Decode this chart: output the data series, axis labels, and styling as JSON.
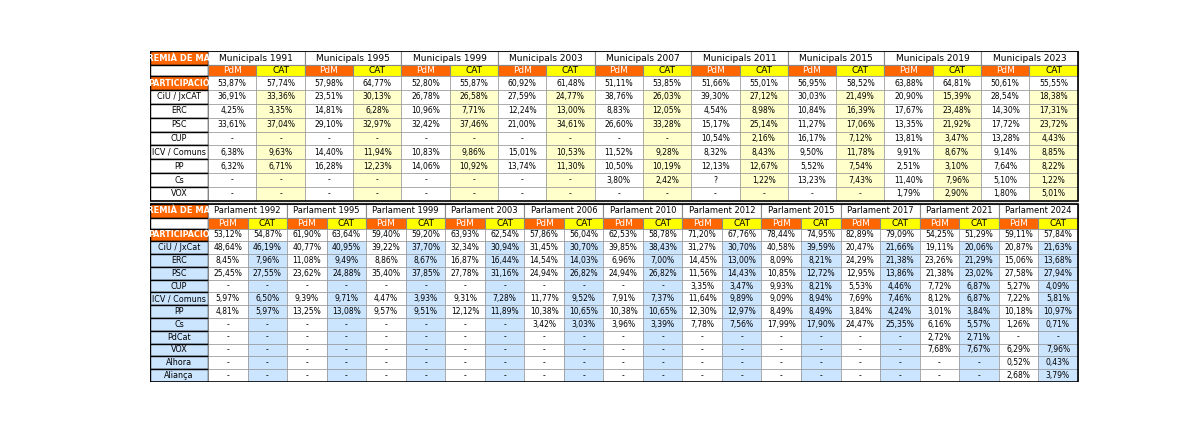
{
  "mun_headers": [
    "Municipals 1991",
    "Municipals 1995",
    "Municipals 1999",
    "Municipals 2003",
    "Municipals 2007",
    "Municipals 2011",
    "Municipals 2015",
    "Municipals 2019",
    "Municipals 2023"
  ],
  "parl_headers": [
    "Parlament 1992",
    "Parlament 1995",
    "Parlament 1999",
    "Parlament 2003",
    "Parlament 2006",
    "Parlament 2010",
    "Parlament 2012",
    "Parlament 2015",
    "Parlament 2017",
    "Parlament 2021",
    "Parlament 2024"
  ],
  "mun_parties": [
    "PARTICIPACIÓ",
    "CiU / JxCAT",
    "ERC",
    "PSC",
    "CUP",
    "ICV / Comuns",
    "PP",
    "Cs",
    "VOX"
  ],
  "parl_parties": [
    "PARTICIPACIÓ",
    "CiU / JxCat",
    "ERC",
    "PSC",
    "CUP",
    "ICV / Comuns",
    "PP",
    "Cs",
    "PdCat",
    "VOX",
    "Alhora",
    "Aliança"
  ],
  "mun_data": [
    [
      "53,87%",
      "57,74%",
      "57,98%",
      "64,77%",
      "52,80%",
      "55,87%",
      "60,92%",
      "61,48%",
      "51,11%",
      "53,85%",
      "51,66%",
      "55,01%",
      "56,95%",
      "58,52%",
      "63,88%",
      "64,81%",
      "50,61%",
      "55,55%"
    ],
    [
      "36,91%",
      "33,36%",
      "23,51%",
      "30,13%",
      "26,78%",
      "26,58%",
      "27,59%",
      "24,77%",
      "38,76%",
      "26,03%",
      "39,30%",
      "27,12%",
      "30,03%",
      "21,49%",
      "20,90%",
      "15,39%",
      "28,54%",
      "18,38%"
    ],
    [
      "4,25%",
      "3,35%",
      "14,81%",
      "6,28%",
      "10,96%",
      "7,71%",
      "12,24%",
      "13,00%",
      "8,83%",
      "12,05%",
      "4,54%",
      "8,98%",
      "10,84%",
      "16,39%",
      "17,67%",
      "23,48%",
      "14,30%",
      "17,31%"
    ],
    [
      "33,61%",
      "37,04%",
      "29,10%",
      "32,97%",
      "32,42%",
      "37,46%",
      "21,00%",
      "34,61%",
      "26,60%",
      "33,28%",
      "15,17%",
      "25,14%",
      "11,27%",
      "17,06%",
      "13,35%",
      "21,92%",
      "17,72%",
      "23,72%"
    ],
    [
      "-",
      "-",
      "-",
      "-",
      "-",
      "-",
      "-",
      "-",
      "-",
      "-",
      "10,54%",
      "2,16%",
      "16,17%",
      "7,12%",
      "13,81%",
      "3,47%",
      "13,28%",
      "4,43%"
    ],
    [
      "6,38%",
      "9,63%",
      "14,40%",
      "11,94%",
      "10,83%",
      "9,86%",
      "15,01%",
      "10,53%",
      "11,52%",
      "9,28%",
      "8,32%",
      "8,43%",
      "9,50%",
      "11,78%",
      "9,91%",
      "8,67%",
      "9,14%",
      "8,85%"
    ],
    [
      "6,32%",
      "6,71%",
      "16,28%",
      "12,23%",
      "14,06%",
      "10,92%",
      "13,74%",
      "11,30%",
      "10,50%",
      "10,19%",
      "12,13%",
      "12,67%",
      "5,52%",
      "7,54%",
      "2,51%",
      "3,10%",
      "7,64%",
      "8,22%"
    ],
    [
      "-",
      "-",
      "-",
      "-",
      "-",
      "-",
      "-",
      "-",
      "3,80%",
      "2,42%",
      "?",
      "1,22%",
      "13,23%",
      "7,43%",
      "11,40%",
      "7,96%",
      "5,10%",
      "1,22%"
    ],
    [
      "-",
      "-",
      "-",
      "-",
      "-",
      "-",
      "-",
      "-",
      "-",
      "-",
      "-",
      "-",
      "-",
      "-",
      "1,79%",
      "2,90%",
      "1,80%",
      "5,01%"
    ]
  ],
  "parl_data": [
    [
      "53,12%",
      "54,87%",
      "61,90%",
      "63,64%",
      "59,40%",
      "59,20%",
      "63,93%",
      "62,54%",
      "57,86%",
      "56,04%",
      "62,53%",
      "58,78%",
      "71,20%",
      "67,76%",
      "78,44%",
      "74,95%",
      "82,89%",
      "79,09%",
      "54,25%",
      "51,29%",
      "59,11%",
      "57,84%"
    ],
    [
      "48,64%",
      "46,19%",
      "40,77%",
      "40,95%",
      "39,22%",
      "37,70%",
      "32,34%",
      "30,94%",
      "31,45%",
      "30,70%",
      "39,85%",
      "38,43%",
      "31,27%",
      "30,70%",
      "40,58%",
      "39,59%",
      "20,47%",
      "21,66%",
      "19,11%",
      "20,06%",
      "20,87%",
      "21,63%"
    ],
    [
      "8,45%",
      "7,96%",
      "11,08%",
      "9,49%",
      "8,86%",
      "8,67%",
      "16,87%",
      "16,44%",
      "14,54%",
      "14,03%",
      "6,96%",
      "7,00%",
      "14,45%",
      "13,00%",
      "8,09%",
      "8,21%",
      "24,29%",
      "21,38%",
      "23,26%",
      "21,29%",
      "15,06%",
      "13,68%"
    ],
    [
      "25,45%",
      "27,55%",
      "23,62%",
      "24,88%",
      "35,40%",
      "37,85%",
      "27,78%",
      "31,16%",
      "24,94%",
      "26,82%",
      "24,94%",
      "26,82%",
      "11,56%",
      "14,43%",
      "10,85%",
      "12,72%",
      "12,95%",
      "13,86%",
      "21,38%",
      "23,02%",
      "27,58%",
      "27,94%"
    ],
    [
      "-",
      "-",
      "-",
      "-",
      "-",
      "-",
      "-",
      "-",
      "-",
      "-",
      "-",
      "-",
      "3,35%",
      "3,47%",
      "9,93%",
      "8,21%",
      "5,53%",
      "4,46%",
      "7,72%",
      "6,87%",
      "5,27%",
      "4,09%"
    ],
    [
      "5,97%",
      "6,50%",
      "9,39%",
      "9,71%",
      "4,47%",
      "3,93%",
      "9,31%",
      "7,28%",
      "11,77%",
      "9,52%",
      "7,91%",
      "7,37%",
      "11,64%",
      "9,89%",
      "9,09%",
      "8,94%",
      "7,69%",
      "7,46%",
      "8,12%",
      "6,87%",
      "7,22%",
      "5,81%"
    ],
    [
      "4,81%",
      "5,97%",
      "13,25%",
      "13,08%",
      "9,57%",
      "9,51%",
      "12,12%",
      "11,89%",
      "10,38%",
      "10,65%",
      "10,38%",
      "10,65%",
      "12,30%",
      "12,97%",
      "8,49%",
      "8,49%",
      "3,84%",
      "4,24%",
      "3,01%",
      "3,84%",
      "10,18%",
      "10,97%"
    ],
    [
      "-",
      "-",
      "-",
      "-",
      "-",
      "-",
      "-",
      "-",
      "3,42%",
      "3,03%",
      "3,96%",
      "3,39%",
      "7,78%",
      "7,56%",
      "17,99%",
      "17,90%",
      "24,47%",
      "25,35%",
      "6,16%",
      "5,57%",
      "1,26%",
      "0,71%"
    ],
    [
      "-",
      "-",
      "-",
      "-",
      "-",
      "-",
      "-",
      "-",
      "-",
      "-",
      "-",
      "-",
      "-",
      "-",
      "-",
      "-",
      "-",
      "-",
      "2,72%",
      "2,71%",
      "-",
      "-"
    ],
    [
      "-",
      "-",
      "-",
      "-",
      "-",
      "-",
      "-",
      "-",
      "-",
      "-",
      "-",
      "-",
      "-",
      "-",
      "-",
      "-",
      "-",
      "-",
      "7,68%",
      "7,67%",
      "6,29%",
      "7,96%"
    ],
    [
      "-",
      "-",
      "-",
      "-",
      "-",
      "-",
      "-",
      "-",
      "-",
      "-",
      "-",
      "-",
      "-",
      "-",
      "-",
      "-",
      "-",
      "-",
      "-",
      "-",
      "0,52%",
      "0,43%"
    ],
    [
      "-",
      "-",
      "-",
      "-",
      "-",
      "-",
      "-",
      "-",
      "-",
      "-",
      "-",
      "-",
      "-",
      "-",
      "-",
      "-",
      "-",
      "-",
      "-",
      "-",
      "2,68%",
      "3,79%"
    ]
  ]
}
